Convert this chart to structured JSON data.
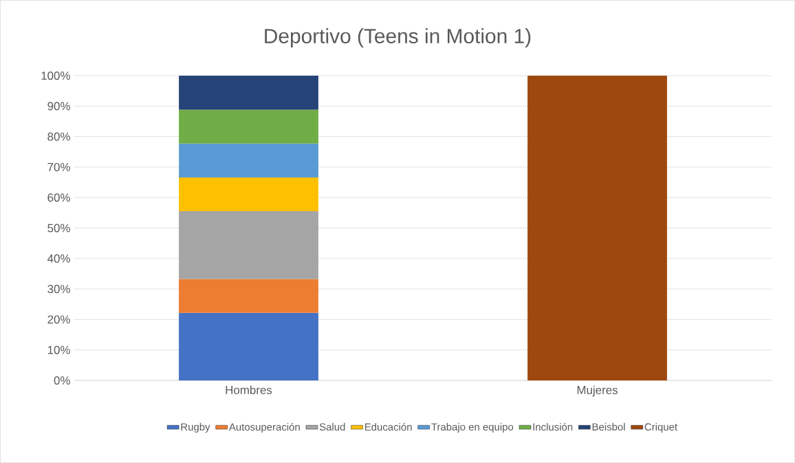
{
  "chart_data": {
    "type": "bar",
    "title": "Deportivo (Teens in Motion 1)",
    "categories": [
      "Hombres",
      "Mujeres"
    ],
    "stacked": true,
    "series": [
      {
        "name": "Rugby",
        "color": "#4472c4",
        "values": [
          22.2,
          null
        ]
      },
      {
        "name": "Autosuperación",
        "color": "#ed7d31",
        "values": [
          11.1,
          null
        ]
      },
      {
        "name": "Salud",
        "color": "#a5a5a5",
        "values": [
          22.2,
          null
        ]
      },
      {
        "name": "Educación",
        "color": "#ffc000",
        "values": [
          11.1,
          null
        ]
      },
      {
        "name": "Trabajo en equipo",
        "color": "#5b9bd5",
        "values": [
          11.1,
          null
        ]
      },
      {
        "name": "Inclusión",
        "color": "#70ad47",
        "values": [
          11.1,
          null
        ]
      },
      {
        "name": "Beisbol",
        "color": "#264478",
        "values": [
          11.2,
          null
        ]
      },
      {
        "name": "Criquet",
        "color": "#9e480e",
        "values": [
          null,
          100
        ]
      }
    ],
    "ylim": [
      0,
      100
    ],
    "yticks": [
      {
        "value": 0,
        "label": "0%"
      },
      {
        "value": 10,
        "label": "10%"
      },
      {
        "value": 20,
        "label": "20%"
      },
      {
        "value": 30,
        "label": "30%"
      },
      {
        "value": 40,
        "label": "40%"
      },
      {
        "value": 50,
        "label": "50%"
      },
      {
        "value": 60,
        "label": "60%"
      },
      {
        "value": 70,
        "label": "70%"
      },
      {
        "value": 80,
        "label": "80%"
      },
      {
        "value": 90,
        "label": "90%"
      },
      {
        "value": 100,
        "label": "100%"
      }
    ],
    "grid": "y",
    "legend": "bottom"
  }
}
